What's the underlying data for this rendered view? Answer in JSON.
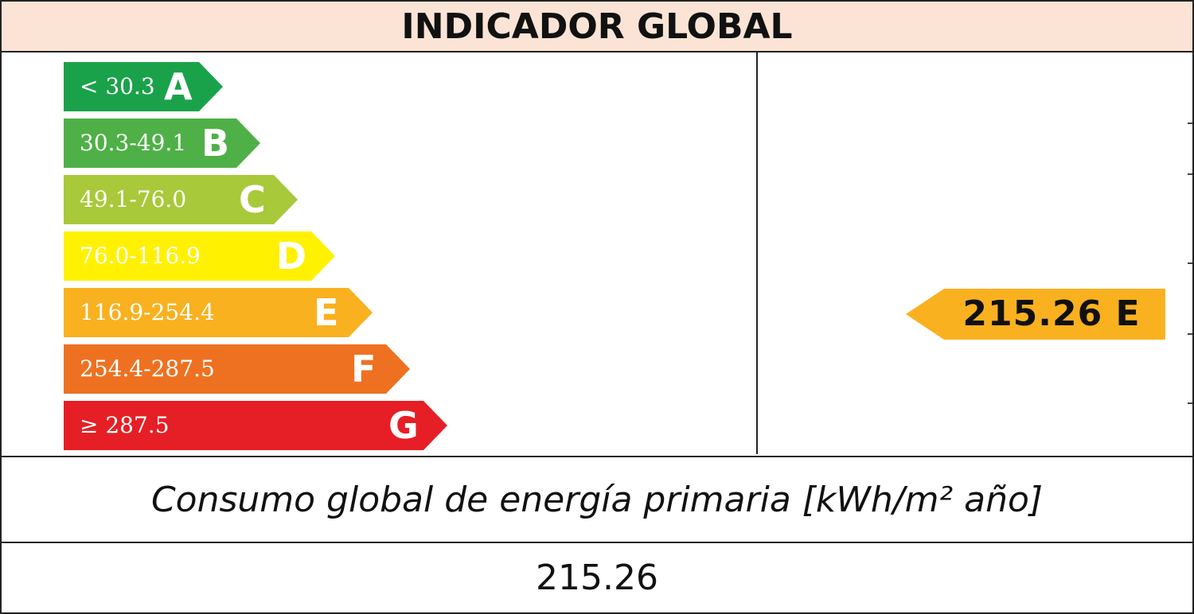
{
  "title": "INDICADOR GLOBAL",
  "scale": [
    {
      "range": "< 30.3",
      "letter": "A",
      "color": "#1aa24a"
    },
    {
      "range": "30.3-49.1",
      "letter": "B",
      "color": "#4fb047"
    },
    {
      "range": "49.1-76.0",
      "letter": "C",
      "color": "#a8c93a"
    },
    {
      "range": "76.0-116.9",
      "letter": "D",
      "color": "#fff100"
    },
    {
      "range": "116.9-254.4",
      "letter": "E",
      "color": "#f9b11f"
    },
    {
      "range": "254.4-287.5",
      "letter": "F",
      "color": "#ee7121"
    },
    {
      "range": "≥ 287.5",
      "letter": "G",
      "color": "#e51f25"
    }
  ],
  "rating": {
    "text": "215.26 E",
    "color": "#f9b11f"
  },
  "metric_label": "Consumo global de energía primaria [kWh/m² año]",
  "metric_value": "215.26"
}
